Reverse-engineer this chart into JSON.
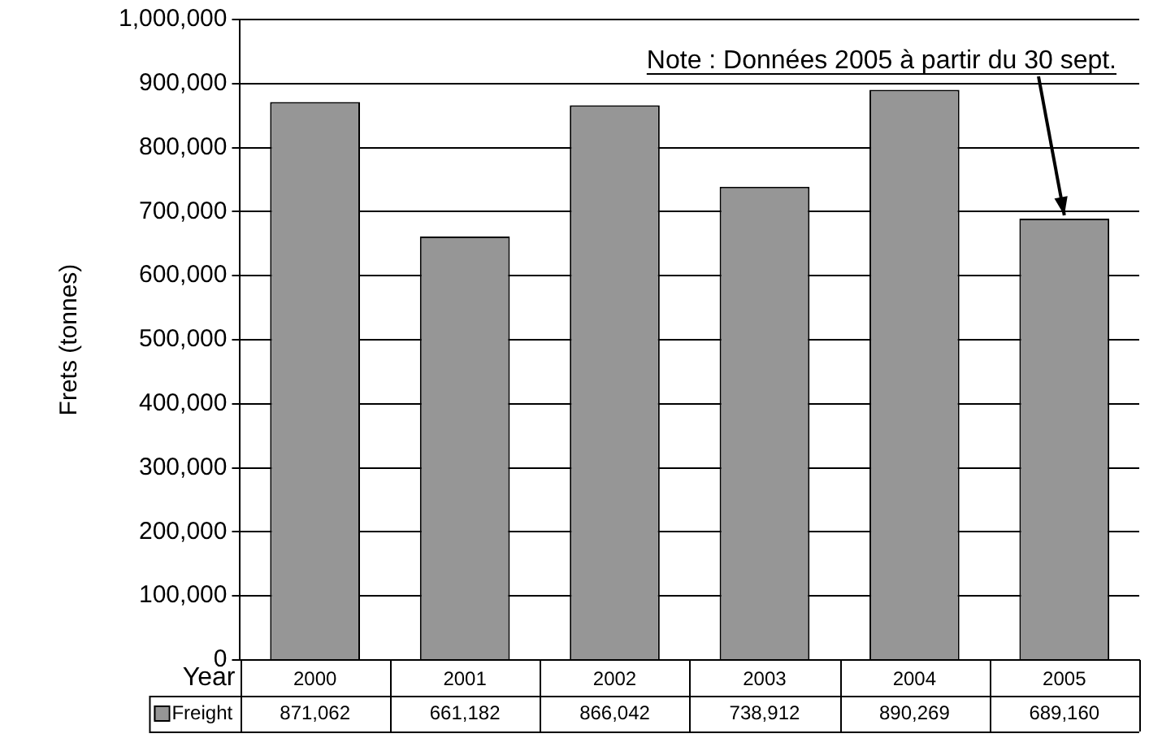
{
  "chart_data": {
    "type": "bar",
    "ylabel": "Frets (tonnes)",
    "xlabel": "Year",
    "categories": [
      "2000",
      "2001",
      "2002",
      "2003",
      "2004",
      "2005"
    ],
    "series": [
      {
        "name": "Freight",
        "color": "#969696",
        "values": [
          871062,
          661182,
          866042,
          738912,
          890269,
          689160
        ],
        "value_labels": [
          "871,062",
          "661,182",
          "866,042",
          "738,912",
          "890,269",
          "689,160"
        ]
      }
    ],
    "ylim": [
      0,
      1000000
    ],
    "yticks": [
      {
        "value": 0,
        "label": "0"
      },
      {
        "value": 100000,
        "label": "100,000"
      },
      {
        "value": 200000,
        "label": "200,000"
      },
      {
        "value": 300000,
        "label": "300,000"
      },
      {
        "value": 400000,
        "label": "400,000"
      },
      {
        "value": 500000,
        "label": "500,000"
      },
      {
        "value": 600000,
        "label": "600,000"
      },
      {
        "value": 700000,
        "label": "700,000"
      },
      {
        "value": 800000,
        "label": "800,000"
      },
      {
        "value": 900000,
        "label": "900,000"
      },
      {
        "value": 1000000,
        "label": "1,000,000"
      }
    ],
    "grid": "y",
    "legend": "bottom",
    "annotations": [
      {
        "text": "Note : Données 2005 à partir du 30 sept.",
        "x": "2005",
        "y": 689160
      }
    ]
  }
}
